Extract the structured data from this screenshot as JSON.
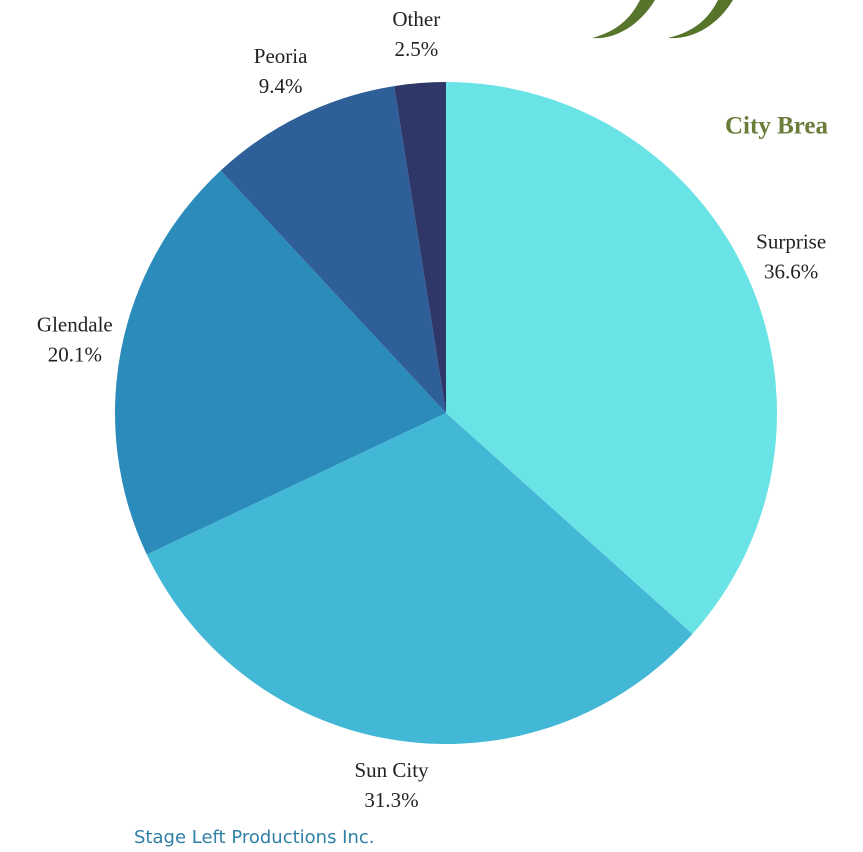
{
  "chart_data": {
    "type": "pie",
    "title": "City Brea",
    "categories": [
      "Surprise",
      "Sun City",
      "Glendale",
      "Peoria",
      "Other"
    ],
    "values": [
      36.6,
      31.3,
      20.1,
      9.4,
      2.5
    ],
    "value_labels": [
      "36.6%",
      "31.3%",
      "20.1%",
      "9.4%",
      "2.5%"
    ],
    "colors": [
      "#69e3e6",
      "#42b8d6",
      "#2b8bba",
      "#2e5f98",
      "#2f3668"
    ]
  },
  "footer": "Stage Left Productions Inc."
}
